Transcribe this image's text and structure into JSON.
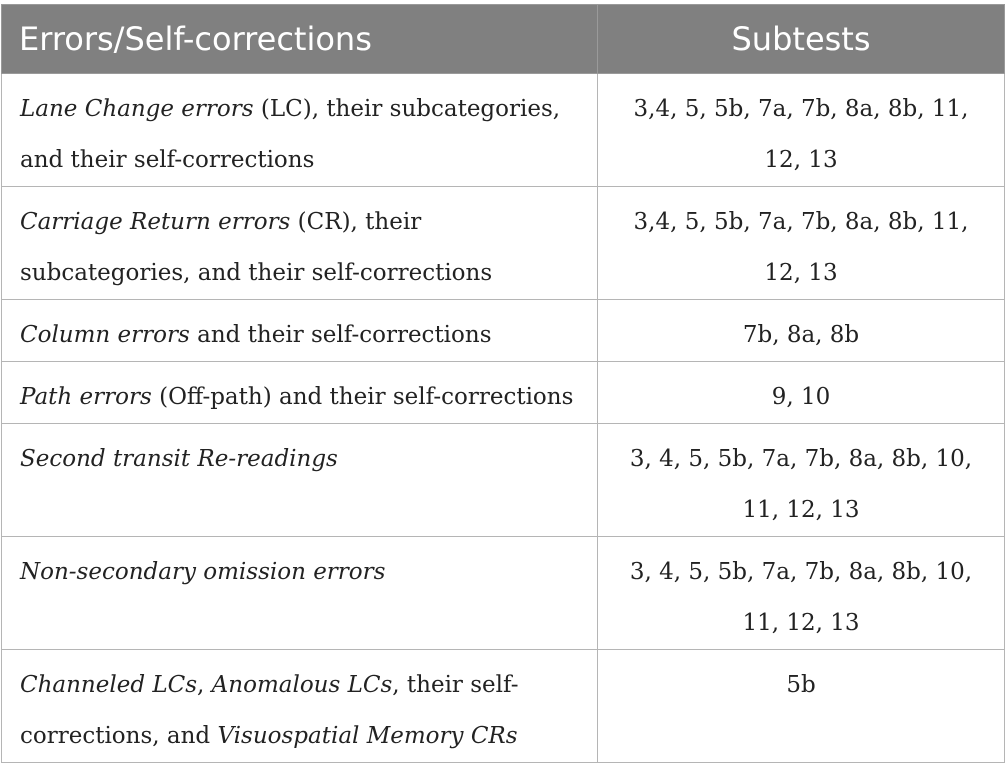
{
  "header": {
    "col1": "Errors/Self-corrections",
    "col2": "Subtests"
  },
  "rows": [
    {
      "segments": [
        {
          "text": "Lane Change errors",
          "italic": true
        },
        {
          "text": " (LC), their subcategories, and their self-corrections",
          "italic": false
        }
      ],
      "subtests": "3,4, 5, 5b, 7a, 7b, 8a, 8b, 11, 12, 13"
    },
    {
      "segments": [
        {
          "text": "Carriage Return errors",
          "italic": true
        },
        {
          "text": " (CR), their subcategories, and their self-corrections",
          "italic": false
        }
      ],
      "subtests": "3,4, 5, 5b, 7a, 7b, 8a, 8b, 11, 12, 13"
    },
    {
      "segments": [
        {
          "text": "Column errors",
          "italic": true
        },
        {
          "text": " and their self-corrections",
          "italic": false
        }
      ],
      "subtests": "7b, 8a, 8b"
    },
    {
      "segments": [
        {
          "text": "Path errors",
          "italic": true
        },
        {
          "text": " (Off-path) and their self-corrections",
          "italic": false
        }
      ],
      "subtests": "9, 10"
    },
    {
      "segments": [
        {
          "text": "Second transit Re-readings",
          "italic": true
        }
      ],
      "subtests": "3, 4, 5, 5b, 7a, 7b, 8a, 8b, 10, 11, 12, 13"
    },
    {
      "segments": [
        {
          "text": "Non-secondary omission errors",
          "italic": true
        }
      ],
      "subtests": "3, 4, 5, 5b, 7a, 7b, 8a, 8b, 10, 11, 12, 13"
    },
    {
      "segments": [
        {
          "text": "Channeled LCs",
          "italic": true
        },
        {
          "text": ", ",
          "italic": false
        },
        {
          "text": "Anomalous LCs",
          "italic": true
        },
        {
          "text": ", their self-corrections, and ",
          "italic": false
        },
        {
          "text": "Visuospatial Memory CRs",
          "italic": true
        }
      ],
      "subtests": "5b"
    }
  ]
}
